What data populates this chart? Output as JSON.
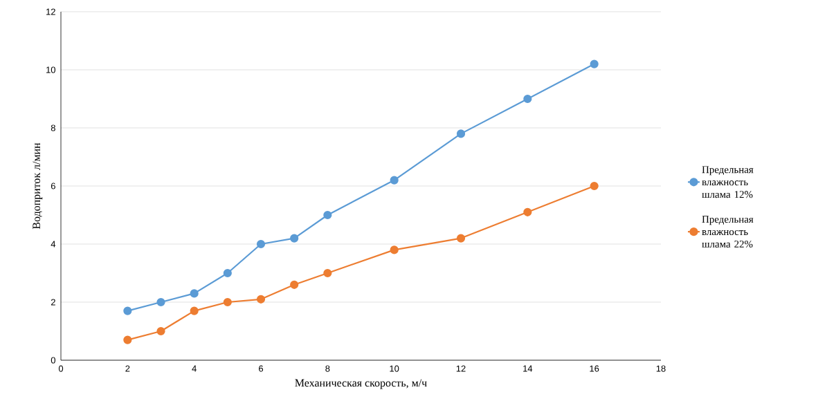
{
  "chart_data": {
    "type": "line",
    "xlabel": "Механическая скорость, м/ч",
    "ylabel": "Водоприток л/мин",
    "xlim": [
      0,
      18
    ],
    "xticks": [
      0,
      2,
      4,
      6,
      8,
      10,
      12,
      14,
      16,
      18
    ],
    "ylim": [
      0,
      12
    ],
    "yticks": [
      0,
      2,
      4,
      6,
      8,
      10,
      12
    ],
    "grid": "y",
    "legend": "right",
    "marker": "circle",
    "line_style": "solid",
    "x": [
      2,
      3,
      4,
      5,
      6,
      7,
      8,
      10,
      12,
      14,
      16
    ],
    "series": [
      {
        "name": "Предельная влажность шлама 12%",
        "color": "#5b9bd5",
        "values": [
          1.7,
          2.0,
          2.3,
          3.0,
          4.0,
          4.2,
          5.0,
          6.2,
          7.8,
          9.0,
          10.2
        ]
      },
      {
        "name": "Предельная влажность шлама 22%",
        "color": "#ed7d31",
        "values": [
          0.7,
          1.0,
          1.7,
          2.0,
          2.1,
          2.6,
          3.0,
          3.8,
          4.2,
          5.1,
          6.0
        ]
      }
    ]
  }
}
